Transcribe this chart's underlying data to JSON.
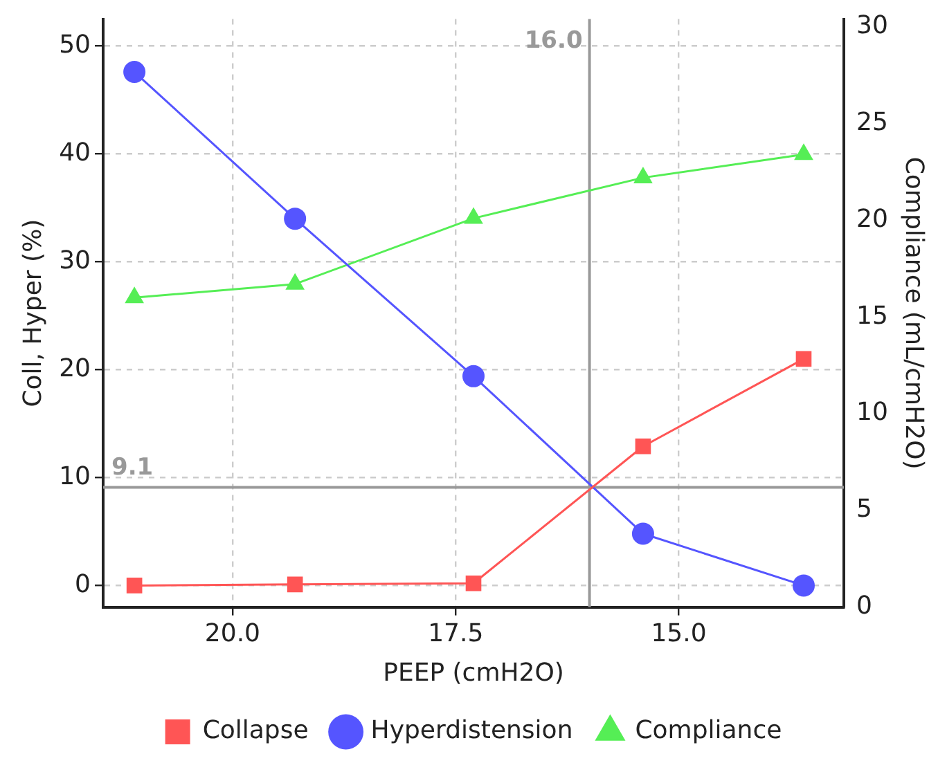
{
  "chart_data": {
    "type": "line",
    "xlabel": "PEEP (cmH2O)",
    "ylabel": "Coll, Hyper (%)",
    "y2label": "Compliance (mL/cmH2O)",
    "x": [
      21.1,
      19.3,
      17.3,
      15.4,
      13.6
    ],
    "series": [
      {
        "name": "Collapse",
        "color": "#ff5555",
        "marker": "square",
        "values": [
          0,
          0.1,
          0.2,
          12.9,
          21.0
        ]
      },
      {
        "name": "Hyperdistension",
        "color": "#5555ff",
        "marker": "circle",
        "values": [
          47.6,
          34.0,
          19.4,
          4.8,
          0
        ]
      },
      {
        "name": "Compliance",
        "color": "#55ee55",
        "marker": "triangle",
        "axis": "y2",
        "values": [
          16.0,
          16.7,
          20.1,
          22.2,
          23.4
        ]
      }
    ],
    "xlim": [
      21.45,
      13.15
    ],
    "xticks": [
      {
        "value": 20,
        "label": "20.0"
      },
      {
        "value": 17.5,
        "label": "17.5"
      },
      {
        "value": 15,
        "label": "15.0"
      }
    ],
    "ylim": [
      -2,
      52.5
    ],
    "yticks": [
      0,
      10,
      20,
      30,
      40,
      50
    ],
    "y2lim": [
      0,
      30.4
    ],
    "y2ticks": [
      0,
      5,
      10,
      15,
      20,
      25,
      30
    ],
    "ref_lines": [
      {
        "axis": "x",
        "value": 16.0,
        "label": "16.0",
        "color": "#999999"
      },
      {
        "axis": "y",
        "value": 9.1,
        "label": "9.1",
        "color": "#999999"
      }
    ],
    "grid": true,
    "legend": "bottom"
  }
}
